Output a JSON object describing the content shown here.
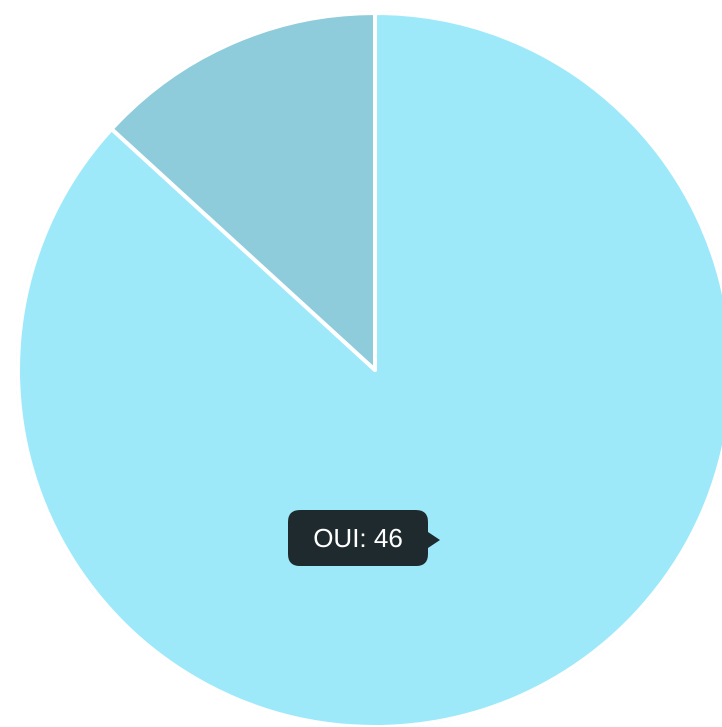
{
  "chart_data": {
    "type": "pie",
    "categories": [
      "OUI",
      null
    ],
    "values": [
      46,
      7
    ],
    "colors": [
      "#9de9fa",
      "#8ecbdb"
    ],
    "tooltip_index": 0
  }
}
